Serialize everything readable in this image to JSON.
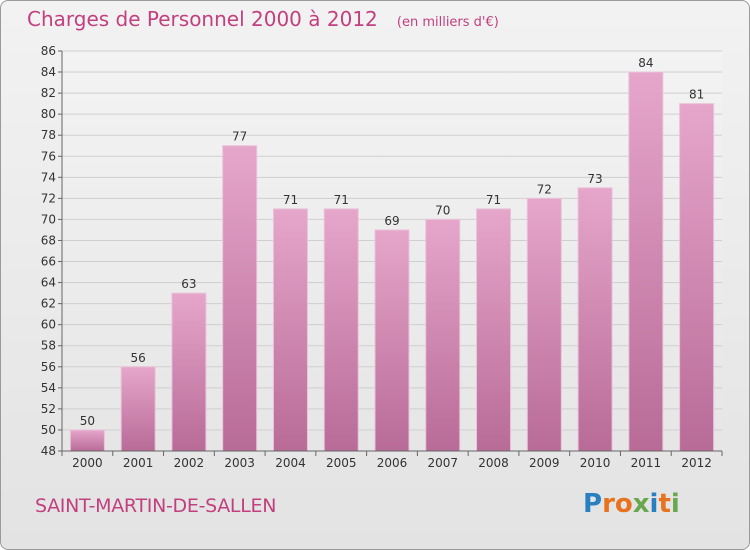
{
  "title": "Charges de Personnel 2000 à 2012",
  "unit": "(en milliers d'€)",
  "commune": "SAINT-MARTIN-DE-SALLEN",
  "brand": {
    "text": "Proxiti",
    "letter_colors": [
      "#2a7fc1",
      "#e8731f",
      "#e8731f",
      "#6aa84f",
      "#2a7fc1",
      "#e8731f",
      "#6aa84f"
    ]
  },
  "colors": {
    "bar": "#d77fb0",
    "bar_light": "#e8aed0",
    "accent": "#c2407f",
    "grid": "#cfcfcf"
  },
  "chart_data": {
    "type": "bar",
    "categories": [
      "2000",
      "2001",
      "2002",
      "2003",
      "2004",
      "2005",
      "2006",
      "2007",
      "2008",
      "2009",
      "2010",
      "2011",
      "2012"
    ],
    "values": [
      50,
      56,
      63,
      77,
      71,
      71,
      69,
      70,
      71,
      72,
      73,
      84,
      81
    ],
    "ylim": [
      48,
      86
    ],
    "yticks": [
      48,
      50,
      52,
      54,
      56,
      58,
      60,
      62,
      64,
      66,
      68,
      70,
      72,
      74,
      76,
      78,
      80,
      82,
      84,
      86
    ],
    "grid": true,
    "data_labels": true
  }
}
